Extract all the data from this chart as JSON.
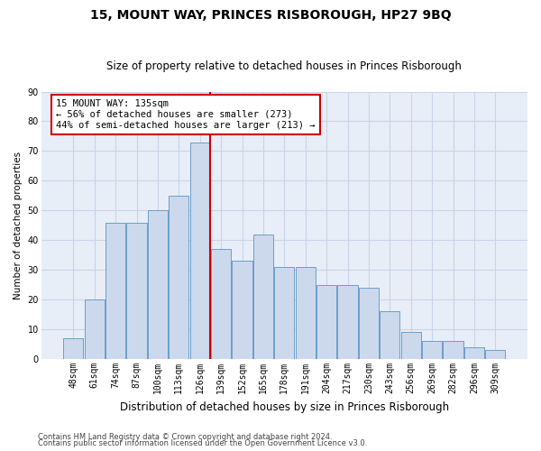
{
  "title": "15, MOUNT WAY, PRINCES RISBOROUGH, HP27 9BQ",
  "subtitle": "Size of property relative to detached houses in Princes Risborough",
  "xlabel": "Distribution of detached houses by size in Princes Risborough",
  "ylabel": "Number of detached properties",
  "categories": [
    "48sqm",
    "61sqm",
    "74sqm",
    "87sqm",
    "100sqm",
    "113sqm",
    "126sqm",
    "139sqm",
    "152sqm",
    "165sqm",
    "178sqm",
    "191sqm",
    "204sqm",
    "217sqm",
    "230sqm",
    "243sqm",
    "256sqm",
    "269sqm",
    "282sqm",
    "296sqm",
    "309sqm"
  ],
  "values": [
    7,
    20,
    46,
    46,
    50,
    55,
    73,
    37,
    33,
    42,
    31,
    31,
    25,
    25,
    24,
    16,
    9,
    6,
    6,
    4,
    3
  ],
  "bar_color": "#ccd9ed",
  "bar_edge_color": "#6b9ec8",
  "vline_x": 6.5,
  "vline_color": "#cc0000",
  "annotation_line1": "15 MOUNT WAY: 135sqm",
  "annotation_line2": "← 56% of detached houses are smaller (273)",
  "annotation_line3": "44% of semi-detached houses are larger (213) →",
  "annotation_box_color": "#ffffff",
  "annotation_box_edge": "#cc0000",
  "ylim": [
    0,
    90
  ],
  "yticks": [
    0,
    10,
    20,
    30,
    40,
    50,
    60,
    70,
    80,
    90
  ],
  "grid_color": "#c8d4e8",
  "background_color": "#e8eef8",
  "footer1": "Contains HM Land Registry data © Crown copyright and database right 2024.",
  "footer2": "Contains public sector information licensed under the Open Government Licence v3.0.",
  "title_fontsize": 10,
  "subtitle_fontsize": 8.5,
  "xlabel_fontsize": 8.5,
  "ylabel_fontsize": 7.5,
  "annot_fontsize": 7.5,
  "tick_fontsize": 7,
  "footer_fontsize": 6
}
